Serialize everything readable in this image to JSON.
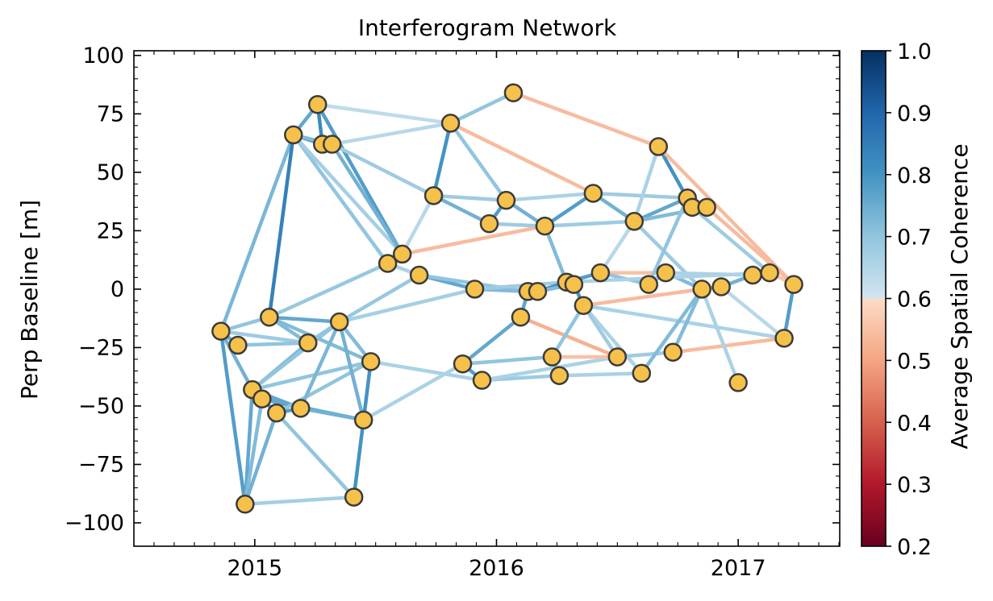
{
  "chart_data": {
    "type": "network",
    "title": "Interferogram Network",
    "xlabel": "",
    "ylabel": "Perp Baseline [m]",
    "xlim": [
      2014.5,
      2017.42
    ],
    "ylim": [
      -110,
      102
    ],
    "xticks": [
      2015,
      2016,
      2017
    ],
    "yticks": [
      -100,
      -75,
      -50,
      -25,
      0,
      25,
      50,
      75,
      100
    ],
    "ytick_labels": [
      "−100",
      "−75",
      "−50",
      "−25",
      "0",
      "25",
      "50",
      "75",
      "100"
    ],
    "colorbar": {
      "label": "Average Spatial Coherence",
      "range": [
        0.2,
        1.0
      ],
      "ticks": [
        0.2,
        0.3,
        0.4,
        0.5,
        0.6,
        0.7,
        0.8,
        0.9,
        1.0
      ],
      "tick_labels": [
        "0.2",
        "0.3",
        "0.4",
        "0.5",
        "0.6",
        "0.7",
        "0.8",
        "0.9",
        "1.0"
      ],
      "colormap": "RdBu (lower part 0.2-0.6 reddish, upper part 0.6-1.0 blues)",
      "stops": [
        {
          "v": 0.2,
          "color": "#67001f"
        },
        {
          "v": 0.3,
          "color": "#b2182b"
        },
        {
          "v": 0.4,
          "color": "#d6604d"
        },
        {
          "v": 0.5,
          "color": "#f4a582"
        },
        {
          "v": 0.6,
          "color": "#fddbc7"
        },
        {
          "v": 0.6001,
          "color": "#d1e5f0"
        },
        {
          "v": 0.7,
          "color": "#92c5de"
        },
        {
          "v": 0.8,
          "color": "#4393c3"
        },
        {
          "v": 0.9,
          "color": "#2166ac"
        },
        {
          "v": 1.0,
          "color": "#053061"
        }
      ]
    },
    "node_color": "#f5c14a",
    "node_edge_color": "#3b3b3b",
    "nodes": [
      {
        "id": "A",
        "x": 2014.86,
        "y": -18
      },
      {
        "id": "B",
        "x": 2014.93,
        "y": -24
      },
      {
        "id": "C",
        "x": 2014.96,
        "y": -92
      },
      {
        "id": "D",
        "x": 2014.99,
        "y": -43
      },
      {
        "id": "E",
        "x": 2015.03,
        "y": -47
      },
      {
        "id": "F",
        "x": 2015.09,
        "y": -53
      },
      {
        "id": "G",
        "x": 2015.06,
        "y": -12
      },
      {
        "id": "H",
        "x": 2015.16,
        "y": 66
      },
      {
        "id": "I",
        "x": 2015.19,
        "y": -51
      },
      {
        "id": "J",
        "x": 2015.22,
        "y": -23
      },
      {
        "id": "K",
        "x": 2015.26,
        "y": 79
      },
      {
        "id": "L",
        "x": 2015.28,
        "y": 62
      },
      {
        "id": "M",
        "x": 2015.32,
        "y": 62
      },
      {
        "id": "N",
        "x": 2015.35,
        "y": -14
      },
      {
        "id": "O",
        "x": 2015.41,
        "y": -89
      },
      {
        "id": "P",
        "x": 2015.45,
        "y": -56
      },
      {
        "id": "Q",
        "x": 2015.48,
        "y": -31
      },
      {
        "id": "R",
        "x": 2015.55,
        "y": 11
      },
      {
        "id": "S",
        "x": 2015.61,
        "y": 15
      },
      {
        "id": "T",
        "x": 2015.68,
        "y": 6
      },
      {
        "id": "U",
        "x": 2015.74,
        "y": 40
      },
      {
        "id": "V",
        "x": 2015.81,
        "y": 71
      },
      {
        "id": "W",
        "x": 2015.86,
        "y": -32
      },
      {
        "id": "X",
        "x": 2015.91,
        "y": 0
      },
      {
        "id": "Y",
        "x": 2015.94,
        "y": -39
      },
      {
        "id": "Z",
        "x": 2015.97,
        "y": 28
      },
      {
        "id": "AA",
        "x": 2016.04,
        "y": 38
      },
      {
        "id": "AB",
        "x": 2016.07,
        "y": 84
      },
      {
        "id": "AC",
        "x": 2016.1,
        "y": -12
      },
      {
        "id": "AD",
        "x": 2016.13,
        "y": -1
      },
      {
        "id": "AE",
        "x": 2016.17,
        "y": -1
      },
      {
        "id": "AF",
        "x": 2016.2,
        "y": 27
      },
      {
        "id": "AG",
        "x": 2016.23,
        "y": -29
      },
      {
        "id": "AH",
        "x": 2016.26,
        "y": -37
      },
      {
        "id": "AI",
        "x": 2016.29,
        "y": 3
      },
      {
        "id": "AJ",
        "x": 2016.32,
        "y": 2
      },
      {
        "id": "AK",
        "x": 2016.36,
        "y": -7
      },
      {
        "id": "AL",
        "x": 2016.4,
        "y": 41
      },
      {
        "id": "AM",
        "x": 2016.43,
        "y": 7
      },
      {
        "id": "AN",
        "x": 2016.5,
        "y": -29
      },
      {
        "id": "AO",
        "x": 2016.57,
        "y": 29
      },
      {
        "id": "AP",
        "x": 2016.6,
        "y": -36
      },
      {
        "id": "AQ",
        "x": 2016.63,
        "y": 2
      },
      {
        "id": "AR",
        "x": 2016.67,
        "y": 61
      },
      {
        "id": "AS",
        "x": 2016.7,
        "y": 7
      },
      {
        "id": "AT",
        "x": 2016.73,
        "y": -27
      },
      {
        "id": "AU",
        "x": 2016.79,
        "y": 39
      },
      {
        "id": "AV",
        "x": 2016.81,
        "y": 35
      },
      {
        "id": "AW",
        "x": 2016.85,
        "y": 0
      },
      {
        "id": "AX",
        "x": 2016.87,
        "y": 35
      },
      {
        "id": "AY",
        "x": 2016.93,
        "y": 1
      },
      {
        "id": "AZ",
        "x": 2017.0,
        "y": -40
      },
      {
        "id": "BA",
        "x": 2017.06,
        "y": 6
      },
      {
        "id": "BB",
        "x": 2017.13,
        "y": 7
      },
      {
        "id": "BC",
        "x": 2017.19,
        "y": -21
      },
      {
        "id": "BD",
        "x": 2017.23,
        "y": 2
      }
    ],
    "edges": [
      {
        "from": "A",
        "to": "B",
        "coherence": 0.76
      },
      {
        "from": "A",
        "to": "C",
        "coherence": 0.78
      },
      {
        "from": "A",
        "to": "D",
        "coherence": 0.74
      },
      {
        "from": "A",
        "to": "G",
        "coherence": 0.7
      },
      {
        "from": "A",
        "to": "J",
        "coherence": 0.68
      },
      {
        "from": "A",
        "to": "H",
        "coherence": 0.73
      },
      {
        "from": "B",
        "to": "J",
        "coherence": 0.7
      },
      {
        "from": "C",
        "to": "D",
        "coherence": 0.76
      },
      {
        "from": "C",
        "to": "E",
        "coherence": 0.72
      },
      {
        "from": "C",
        "to": "F",
        "coherence": 0.74
      },
      {
        "from": "C",
        "to": "O",
        "coherence": 0.67
      },
      {
        "from": "D",
        "to": "E",
        "coherence": 0.82
      },
      {
        "from": "D",
        "to": "I",
        "coherence": 0.76
      },
      {
        "from": "D",
        "to": "J",
        "coherence": 0.72
      },
      {
        "from": "D",
        "to": "N",
        "coherence": 0.7
      },
      {
        "from": "D",
        "to": "Q",
        "coherence": 0.7
      },
      {
        "from": "E",
        "to": "F",
        "coherence": 0.8
      },
      {
        "from": "E",
        "to": "I",
        "coherence": 0.74
      },
      {
        "from": "E",
        "to": "P",
        "coherence": 0.76
      },
      {
        "from": "F",
        "to": "I",
        "coherence": 0.78
      },
      {
        "from": "F",
        "to": "O",
        "coherence": 0.7
      },
      {
        "from": "F",
        "to": "Q",
        "coherence": 0.7
      },
      {
        "from": "G",
        "to": "H",
        "coherence": 0.84
      },
      {
        "from": "G",
        "to": "J",
        "coherence": 0.72
      },
      {
        "from": "G",
        "to": "N",
        "coherence": 0.76
      },
      {
        "from": "G",
        "to": "R",
        "coherence": 0.69
      },
      {
        "from": "G",
        "to": "Q",
        "coherence": 0.72
      },
      {
        "from": "I",
        "to": "P",
        "coherence": 0.74
      },
      {
        "from": "I",
        "to": "N",
        "coherence": 0.73
      },
      {
        "from": "J",
        "to": "N",
        "coherence": 0.7
      },
      {
        "from": "N",
        "to": "P",
        "coherence": 0.74
      },
      {
        "from": "N",
        "to": "Q",
        "coherence": 0.72
      },
      {
        "from": "N",
        "to": "T",
        "coherence": 0.69
      },
      {
        "from": "N",
        "to": "X",
        "coherence": 0.67
      },
      {
        "from": "O",
        "to": "P",
        "coherence": 0.8
      },
      {
        "from": "P",
        "to": "Q",
        "coherence": 0.8
      },
      {
        "from": "P",
        "to": "W",
        "coherence": 0.66
      },
      {
        "from": "Q",
        "to": "Y",
        "coherence": 0.66
      },
      {
        "from": "H",
        "to": "K",
        "coherence": 0.76
      },
      {
        "from": "H",
        "to": "L",
        "coherence": 0.78
      },
      {
        "from": "H",
        "to": "M",
        "coherence": 0.72
      },
      {
        "from": "H",
        "to": "R",
        "coherence": 0.7
      },
      {
        "from": "H",
        "to": "S",
        "coherence": 0.67
      },
      {
        "from": "K",
        "to": "L",
        "coherence": 0.82
      },
      {
        "from": "K",
        "to": "V",
        "coherence": 0.63
      },
      {
        "from": "K",
        "to": "S",
        "coherence": 0.78
      },
      {
        "from": "L",
        "to": "M",
        "coherence": 0.82
      },
      {
        "from": "M",
        "to": "V",
        "coherence": 0.64
      },
      {
        "from": "M",
        "to": "S",
        "coherence": 0.74
      },
      {
        "from": "M",
        "to": "U",
        "coherence": 0.68
      },
      {
        "from": "R",
        "to": "S",
        "coherence": 0.82
      },
      {
        "from": "R",
        "to": "T",
        "coherence": 0.66
      },
      {
        "from": "S",
        "to": "U",
        "coherence": 0.64
      },
      {
        "from": "S",
        "to": "AF",
        "coherence": 0.54
      },
      {
        "from": "T",
        "to": "X",
        "coherence": 0.76
      },
      {
        "from": "T",
        "to": "AD",
        "coherence": 0.7
      },
      {
        "from": "U",
        "to": "V",
        "coherence": 0.8
      },
      {
        "from": "U",
        "to": "Z",
        "coherence": 0.74
      },
      {
        "from": "U",
        "to": "AA",
        "coherence": 0.68
      },
      {
        "from": "V",
        "to": "AB",
        "coherence": 0.7
      },
      {
        "from": "V",
        "to": "AA",
        "coherence": 0.7
      },
      {
        "from": "V",
        "to": "AL",
        "coherence": 0.54
      },
      {
        "from": "W",
        "to": "Y",
        "coherence": 0.78
      },
      {
        "from": "W",
        "to": "AC",
        "coherence": 0.76
      },
      {
        "from": "W",
        "to": "AG",
        "coherence": 0.7
      },
      {
        "from": "X",
        "to": "AD",
        "coherence": 0.72
      },
      {
        "from": "X",
        "to": "AI",
        "coherence": 0.68
      },
      {
        "from": "Y",
        "to": "AH",
        "coherence": 0.68
      },
      {
        "from": "Y",
        "to": "AN",
        "coherence": 0.66
      },
      {
        "from": "Z",
        "to": "AA",
        "coherence": 0.78
      },
      {
        "from": "Z",
        "to": "AF",
        "coherence": 0.68
      },
      {
        "from": "AA",
        "to": "AF",
        "coherence": 0.74
      },
      {
        "from": "AA",
        "to": "AL",
        "coherence": 0.66
      },
      {
        "from": "AB",
        "to": "AR",
        "coherence": 0.54
      },
      {
        "from": "AC",
        "to": "AD",
        "coherence": 0.76
      },
      {
        "from": "AC",
        "to": "AN",
        "coherence": 0.52
      },
      {
        "from": "AD",
        "to": "AE",
        "coherence": 0.8
      },
      {
        "from": "AE",
        "to": "AI",
        "coherence": 0.8
      },
      {
        "from": "AE",
        "to": "AJ",
        "coherence": 0.72
      },
      {
        "from": "AF",
        "to": "AL",
        "coherence": 0.78
      },
      {
        "from": "AF",
        "to": "AI",
        "coherence": 0.72
      },
      {
        "from": "AF",
        "to": "AO",
        "coherence": 0.68
      },
      {
        "from": "AG",
        "to": "AH",
        "coherence": 0.72
      },
      {
        "from": "AG",
        "to": "AN",
        "coherence": 0.55
      },
      {
        "from": "AG",
        "to": "AK",
        "coherence": 0.7
      },
      {
        "from": "AH",
        "to": "AP",
        "coherence": 0.66
      },
      {
        "from": "AI",
        "to": "AJ",
        "coherence": 0.82
      },
      {
        "from": "AI",
        "to": "AM",
        "coherence": 0.78
      },
      {
        "from": "AJ",
        "to": "AK",
        "coherence": 0.8
      },
      {
        "from": "AK",
        "to": "AW",
        "coherence": 0.54
      },
      {
        "from": "AK",
        "to": "AP",
        "coherence": 0.66
      },
      {
        "from": "AK",
        "to": "AN",
        "coherence": 0.68
      },
      {
        "from": "AK",
        "to": "BC",
        "coherence": 0.66
      },
      {
        "from": "AL",
        "to": "AU",
        "coherence": 0.68
      },
      {
        "from": "AL",
        "to": "AO",
        "coherence": 0.74
      },
      {
        "from": "AM",
        "to": "AS",
        "coherence": 0.55
      },
      {
        "from": "AM",
        "to": "AO",
        "coherence": 0.64
      },
      {
        "from": "AM",
        "to": "AQ",
        "coherence": 0.7
      },
      {
        "from": "AN",
        "to": "AT",
        "coherence": 0.68
      },
      {
        "from": "AO",
        "to": "AR",
        "coherence": 0.66
      },
      {
        "from": "AO",
        "to": "AU",
        "coherence": 0.76
      },
      {
        "from": "AO",
        "to": "AX",
        "coherence": 0.72
      },
      {
        "from": "AO",
        "to": "AW",
        "coherence": 0.68
      },
      {
        "from": "AP",
        "to": "AW",
        "coherence": 0.72
      },
      {
        "from": "AQ",
        "to": "AS",
        "coherence": 0.76
      },
      {
        "from": "AQ",
        "to": "AU",
        "coherence": 0.7
      },
      {
        "from": "AR",
        "to": "AV",
        "coherence": 0.8
      },
      {
        "from": "AR",
        "to": "BD",
        "coherence": 0.54
      },
      {
        "from": "AS",
        "to": "AW",
        "coherence": 0.72
      },
      {
        "from": "AS",
        "to": "BA",
        "coherence": 0.66
      },
      {
        "from": "AT",
        "to": "AW",
        "coherence": 0.72
      },
      {
        "from": "AT",
        "to": "BC",
        "coherence": 0.54
      },
      {
        "from": "AU",
        "to": "AV",
        "coherence": 0.82
      },
      {
        "from": "AU",
        "to": "AX",
        "coherence": 0.78
      },
      {
        "from": "AV",
        "to": "BB",
        "coherence": 0.68
      },
      {
        "from": "AW",
        "to": "AY",
        "coherence": 0.74
      },
      {
        "from": "AW",
        "to": "AZ",
        "coherence": 0.66
      },
      {
        "from": "AX",
        "to": "BD",
        "coherence": 0.54
      },
      {
        "from": "AY",
        "to": "BA",
        "coherence": 0.74
      },
      {
        "from": "AY",
        "to": "BC",
        "coherence": 0.64
      },
      {
        "from": "BA",
        "to": "BB",
        "coherence": 0.76
      },
      {
        "from": "BB",
        "to": "BD",
        "coherence": 0.56
      },
      {
        "from": "BC",
        "to": "BD",
        "coherence": 0.78
      },
      {
        "from": "AI",
        "to": "BB",
        "coherence": 0.66
      }
    ]
  }
}
